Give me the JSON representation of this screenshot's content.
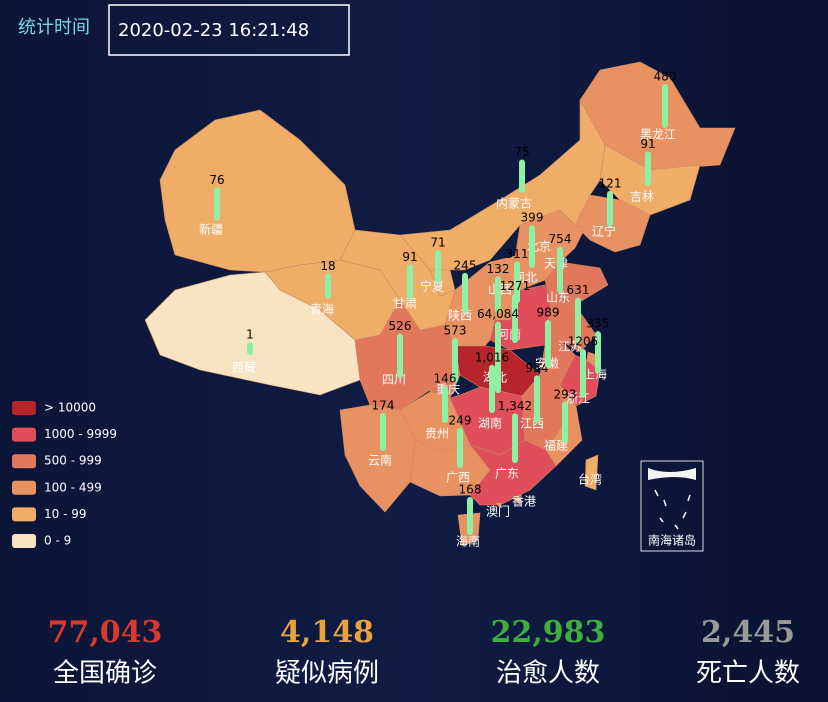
{
  "header": {
    "time_label": "统计时间",
    "time": "2020-02-23 16:21:48"
  },
  "legend": [
    {
      "label": "> 10000",
      "min": 10000,
      "color": "#b7242b"
    },
    {
      "label": "1000 - 9999",
      "min": 1000,
      "color": "#e04d5b"
    },
    {
      "label": "500 - 999",
      "min": 500,
      "color": "#e3775b"
    },
    {
      "label": "100 - 499",
      "min": 100,
      "color": "#e99261"
    },
    {
      "label": "10 - 99",
      "min": 10,
      "color": "#efad68"
    },
    {
      "label": "0 - 9",
      "min": 0,
      "color": "#f8e4c2"
    }
  ],
  "map": {
    "bar_color": "#8ef0a3",
    "provinces": [
      {
        "name": "黑龙江",
        "value": 480
      },
      {
        "name": "吉林",
        "value": 91
      },
      {
        "name": "辽宁",
        "value": 121
      },
      {
        "name": "内蒙古",
        "value": 75
      },
      {
        "name": "北京",
        "value": 399
      },
      {
        "name": "天津",
        "value": null
      },
      {
        "name": "河北",
        "value": 311
      },
      {
        "name": "山东",
        "value": 754
      },
      {
        "name": "山西",
        "value": 132
      },
      {
        "name": "河南",
        "value": 1271
      },
      {
        "name": "陕西",
        "value": 245
      },
      {
        "name": "宁夏",
        "value": 71
      },
      {
        "name": "甘肃",
        "value": 91
      },
      {
        "name": "青海",
        "value": 18
      },
      {
        "name": "新疆",
        "value": 76
      },
      {
        "name": "西藏",
        "value": 1
      },
      {
        "name": "四川",
        "value": 526
      },
      {
        "name": "重庆",
        "value": 573
      },
      {
        "name": "湖北",
        "value": 64084,
        "value_label": "64,084"
      },
      {
        "name": "湖南",
        "value": 1016,
        "value_label": "1,016"
      },
      {
        "name": "江西",
        "value": 934
      },
      {
        "name": "安徽",
        "value": 989
      },
      {
        "name": "江苏",
        "value": 631
      },
      {
        "name": "上海",
        "value": 335
      },
      {
        "name": "浙江",
        "value": 1205
      },
      {
        "name": "福建",
        "value": 293
      },
      {
        "name": "广东",
        "value": 1342,
        "value_label": "1,342"
      },
      {
        "name": "广西",
        "value": 249
      },
      {
        "name": "贵州",
        "value": 146
      },
      {
        "name": "云南",
        "value": 174
      },
      {
        "name": "海南",
        "value": 168
      },
      {
        "name": "台湾",
        "value": null
      },
      {
        "name": "香港",
        "value": null
      },
      {
        "name": "澳门",
        "value": null
      }
    ],
    "inset_label": "南海诸岛"
  },
  "stats": [
    {
      "value": 77043,
      "value_label": "77,043",
      "label": "全国确诊",
      "color": "#d8392b"
    },
    {
      "value": 4148,
      "value_label": "4,148",
      "label": "疑似病例",
      "color": "#e8a33d"
    },
    {
      "value": 22983,
      "value_label": "22,983",
      "label": "治愈人数",
      "color": "#3fae3f"
    },
    {
      "value": 2445,
      "value_label": "2,445",
      "label": "死亡人数",
      "color": "#9a9a9a"
    }
  ]
}
